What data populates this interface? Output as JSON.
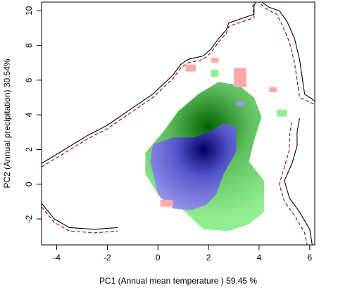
{
  "chart_data": {
    "type": "heatmap",
    "title": "",
    "xlabel": "PC1 (Annual mean temperature ) 59.45 %",
    "ylabel": "PC2 (Annual precipitation) 30.54%",
    "xlim": [
      -4.6,
      6.2
    ],
    "ylim": [
      -3.5,
      10.5
    ],
    "xticks": [
      "-4",
      "-2",
      "0",
      "2",
      "4",
      "6"
    ],
    "xtick_values": [
      -4,
      -2,
      0,
      2,
      4,
      6
    ],
    "yticks": [
      "-2",
      "0",
      "2",
      "4",
      "6",
      "8",
      "10"
    ],
    "ytick_values": [
      -2,
      0,
      2,
      4,
      6,
      8,
      10
    ],
    "grid": false,
    "colors": {
      "green": "#90ee90",
      "green_dark": "#006400",
      "blue": "#9999ee",
      "blue_dark": "#000066",
      "red": "#ffaaaa",
      "solid_line": "#000000",
      "dashed_line": "#8b0000"
    },
    "green_region": [
      [
        -0.5,
        0.6
      ],
      [
        -0.5,
        1.8
      ],
      [
        0.2,
        3.0
      ],
      [
        0.8,
        4.2
      ],
      [
        1.6,
        5.2
      ],
      [
        2.4,
        5.9
      ],
      [
        3.2,
        5.7
      ],
      [
        3.8,
        5.0
      ],
      [
        4.1,
        3.9
      ],
      [
        3.8,
        2.5
      ],
      [
        3.6,
        1.3
      ],
      [
        4.2,
        0.2
      ],
      [
        4.2,
        -1.6
      ],
      [
        3.6,
        -2.3
      ],
      [
        2.8,
        -2.7
      ],
      [
        1.8,
        -2.6
      ],
      [
        1.0,
        -1.5
      ],
      [
        0.1,
        -0.8
      ]
    ],
    "green_spots": [
      [
        [
          2.1,
          6.6
        ],
        [
          2.4,
          6.6
        ],
        [
          2.4,
          6.2
        ],
        [
          2.1,
          6.2
        ]
      ],
      [
        [
          4.7,
          4.3
        ],
        [
          5.1,
          4.3
        ],
        [
          5.1,
          3.9
        ],
        [
          4.7,
          3.9
        ]
      ]
    ],
    "green_density_peak": [
      2.0,
      3.3
    ],
    "blue_region": [
      [
        -0.3,
        1.3
      ],
      [
        -0.2,
        2.3
      ],
      [
        0.6,
        2.7
      ],
      [
        1.4,
        2.7
      ],
      [
        2.0,
        3.0
      ],
      [
        2.6,
        3.5
      ],
      [
        3.1,
        3.3
      ],
      [
        3.1,
        1.9
      ],
      [
        2.6,
        0.6
      ],
      [
        2.3,
        -0.6
      ],
      [
        1.9,
        -1.2
      ],
      [
        1.3,
        -1.5
      ],
      [
        0.6,
        -1.4
      ],
      [
        0.0,
        -0.6
      ]
    ],
    "blue_density_peak": [
      1.8,
      2.0
    ],
    "red_spots": [
      [
        [
          1.1,
          6.9
        ],
        [
          1.5,
          6.9
        ],
        [
          1.5,
          6.5
        ],
        [
          1.1,
          6.5
        ]
      ],
      [
        [
          3.0,
          6.7
        ],
        [
          3.5,
          6.7
        ],
        [
          3.5,
          5.6
        ],
        [
          3.0,
          5.6
        ]
      ],
      [
        [
          2.1,
          7.3
        ],
        [
          2.4,
          7.3
        ],
        [
          2.4,
          7.0
        ],
        [
          2.1,
          7.0
        ]
      ],
      [
        [
          4.4,
          5.6
        ],
        [
          4.7,
          5.6
        ],
        [
          4.7,
          5.3
        ],
        [
          4.4,
          5.3
        ]
      ],
      [
        [
          0.1,
          -0.9
        ],
        [
          0.6,
          -0.9
        ],
        [
          0.6,
          -1.3
        ],
        [
          0.1,
          -1.3
        ]
      ]
    ],
    "small_blue_spot": [
      [
        3.1,
        4.8
      ],
      [
        3.4,
        4.8
      ],
      [
        3.4,
        4.5
      ],
      [
        3.1,
        4.5
      ]
    ],
    "solid_boundary_upper": [
      [
        -4.6,
        1.2
      ],
      [
        -3.8,
        1.9
      ],
      [
        -2.8,
        2.8
      ],
      [
        -2.0,
        3.4
      ],
      [
        -1.2,
        4.2
      ],
      [
        -0.2,
        5.2
      ],
      [
        0.6,
        6.3
      ],
      [
        0.9,
        6.9
      ],
      [
        1.2,
        7.2
      ],
      [
        1.8,
        7.4
      ],
      [
        2.1,
        7.8
      ],
      [
        2.4,
        8.4
      ],
      [
        2.7,
        8.9
      ],
      [
        2.8,
        9.3
      ],
      [
        3.2,
        9.5
      ],
      [
        3.8,
        9.8
      ],
      [
        3.8,
        10.3
      ],
      [
        3.9,
        10.6
      ]
    ],
    "dashed_boundary_upper": [
      [
        -4.6,
        1.0
      ],
      [
        -3.8,
        1.7
      ],
      [
        -2.8,
        2.6
      ],
      [
        -2.0,
        3.2
      ],
      [
        -1.2,
        4.0
      ],
      [
        -0.2,
        5.0
      ],
      [
        0.6,
        6.1
      ],
      [
        0.9,
        6.7
      ],
      [
        1.2,
        7.0
      ],
      [
        1.8,
        7.2
      ],
      [
        2.1,
        7.6
      ],
      [
        2.4,
        8.2
      ],
      [
        2.7,
        8.7
      ],
      [
        2.8,
        9.1
      ],
      [
        3.2,
        9.3
      ],
      [
        3.8,
        9.6
      ],
      [
        3.75,
        10.3
      ],
      [
        3.8,
        10.6
      ]
    ],
    "solid_boundary_right": [
      [
        4.0,
        10.6
      ],
      [
        4.4,
        10.2
      ],
      [
        4.8,
        10.0
      ],
      [
        5.1,
        9.4
      ],
      [
        5.4,
        8.4
      ],
      [
        5.6,
        7.2
      ],
      [
        5.7,
        6.2
      ],
      [
        5.8,
        5.2
      ],
      [
        6.2,
        4.8
      ]
    ],
    "dashed_boundary_right": [
      [
        3.9,
        10.6
      ],
      [
        4.3,
        10.1
      ],
      [
        4.7,
        9.8
      ],
      [
        4.9,
        9.2
      ],
      [
        5.2,
        8.2
      ],
      [
        5.4,
        7.0
      ],
      [
        5.5,
        6.0
      ],
      [
        5.6,
        5.0
      ],
      [
        6.2,
        4.6
      ]
    ],
    "solid_boundary_lower": [
      [
        -4.6,
        -1.1
      ],
      [
        -4.1,
        -2.0
      ],
      [
        -3.5,
        -2.5
      ],
      [
        -2.5,
        -2.6
      ],
      [
        -1.6,
        -2.5
      ]
    ],
    "dashed_boundary_lower": [
      [
        -4.6,
        -1.3
      ],
      [
        -4.1,
        -2.2
      ],
      [
        -3.5,
        -2.7
      ],
      [
        -2.5,
        -2.8
      ],
      [
        -1.6,
        -2.7
      ]
    ],
    "solid_boundary_inner_right": [
      [
        5.6,
        3.8
      ],
      [
        5.5,
        3.0
      ],
      [
        5.5,
        2.2
      ],
      [
        5.3,
        1.2
      ],
      [
        5.0,
        0.2
      ],
      [
        5.2,
        -0.8
      ],
      [
        5.6,
        -1.6
      ],
      [
        6.0,
        -2.6
      ],
      [
        6.1,
        -3.5
      ]
    ],
    "dashed_boundary_inner_right": [
      [
        5.3,
        3.6
      ],
      [
        5.2,
        2.8
      ],
      [
        5.2,
        2.0
      ],
      [
        5.0,
        1.0
      ],
      [
        4.8,
        0.0
      ],
      [
        5.0,
        -1.0
      ],
      [
        5.4,
        -1.8
      ],
      [
        5.8,
        -2.8
      ],
      [
        5.9,
        -3.5
      ]
    ]
  }
}
